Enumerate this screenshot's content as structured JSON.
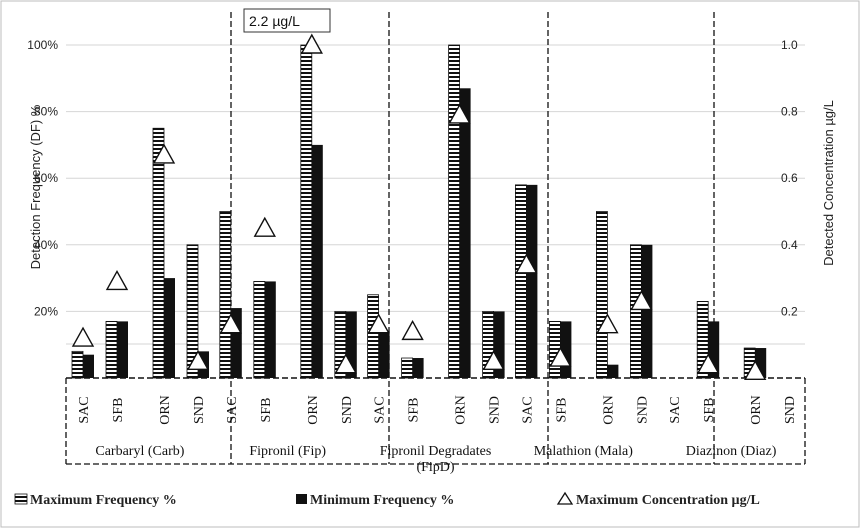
{
  "chart_data": {
    "type": "bar",
    "ylabel_left": "Detection Frequency (DF) %",
    "ylabel_right": "Detected Concentration µg/L",
    "ylim_left": [
      0,
      100
    ],
    "ylim_right": [
      0,
      1.0
    ],
    "yticks_left": [
      "20%",
      "40%",
      "60%",
      "80%",
      "100%"
    ],
    "yticks_right": [
      "0.2",
      "0.4",
      "0.6",
      "0.8",
      "1.0"
    ],
    "grid": true,
    "legend_position": "bottom",
    "groups": [
      {
        "name": "Carbaryl (Carb)",
        "sites": [
          "SAC",
          "SFB",
          "ORN",
          "SND"
        ]
      },
      {
        "name": "Fipronil (Fip)",
        "sites": [
          "SAC",
          "SFB",
          "ORN",
          "SND"
        ]
      },
      {
        "name": "Fipronil Degradates (FipD)",
        "sites": [
          "SAC",
          "SFB",
          "ORN",
          "SND"
        ]
      },
      {
        "name": "Malathion (Mala)",
        "sites": [
          "SAC",
          "SFB",
          "ORN",
          "SND"
        ]
      },
      {
        "name": "Diazinon (Diaz)",
        "sites": [
          "SAC",
          "SFB",
          "ORN",
          "SND"
        ]
      }
    ],
    "series": [
      {
        "name": "Maximum Frequency %",
        "values": [
          [
            8,
            17,
            75,
            40
          ],
          [
            50,
            29,
            100,
            20
          ],
          [
            25,
            6,
            100,
            20
          ],
          [
            58,
            17,
            50,
            40
          ],
          [
            0,
            23,
            9,
            0
          ]
        ]
      },
      {
        "name": "Minimum Frequency %",
        "values": [
          [
            7,
            17,
            30,
            8
          ],
          [
            21,
            29,
            70,
            20
          ],
          [
            14,
            6,
            87,
            20
          ],
          [
            58,
            17,
            4,
            40
          ],
          [
            0,
            17,
            9,
            0
          ]
        ]
      },
      {
        "name": "Maximum Concentration µg/L",
        "values": [
          [
            0.12,
            0.29,
            0.67,
            0.05
          ],
          [
            0.16,
            0.45,
            1.0,
            0.04
          ],
          [
            0.16,
            0.14,
            0.79,
            0.05
          ],
          [
            0.34,
            0.06,
            0.16,
            0.23
          ],
          [
            null,
            0.04,
            0.02,
            null
          ]
        ]
      }
    ],
    "annotation": "2.2 µg/L"
  }
}
